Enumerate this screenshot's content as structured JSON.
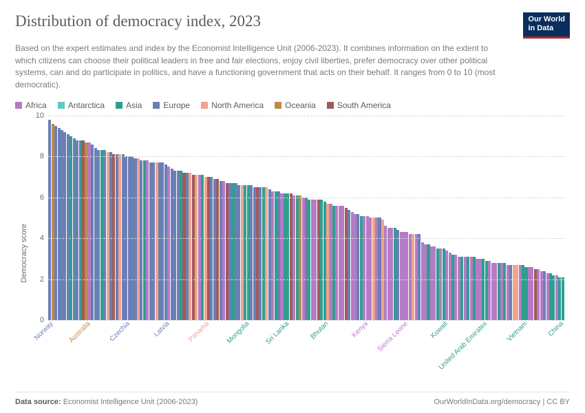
{
  "header": {
    "title": "Distribution of democracy index, 2023",
    "subtitle": "Based on the expert estimates and index by the Economist Intelligence Unit (2006-2023). It combines information on the extent to which citizens can choose their political leaders in free and fair elections, enjoy civil liberties, prefer democracy over other political systems, can and do participate in politics, and have a functioning government that acts on their behalf. It ranges from 0 to 10 (most democratic).",
    "logo_line1": "Our World",
    "logo_line2": "in Data"
  },
  "legend": [
    {
      "label": "Africa",
      "color": "#b57bc4"
    },
    {
      "label": "Antarctica",
      "color": "#5ec8c3"
    },
    {
      "label": "Asia",
      "color": "#2f9e8f"
    },
    {
      "label": "Europe",
      "color": "#6a7fb5"
    },
    {
      "label": "North America",
      "color": "#f0a48c"
    },
    {
      "label": "Oceania",
      "color": "#c08a4a"
    },
    {
      "label": "South America",
      "color": "#a05a5a"
    }
  ],
  "chart": {
    "type": "bar",
    "ylabel": "Democracy score",
    "ylim": [
      0,
      10
    ],
    "ytick_step": 2,
    "grid_color": "#d7d7d7",
    "background_color": "#ffffff",
    "tick_fontsize": 11,
    "label_fontsize": 11,
    "xlabel_fontsize": 10,
    "bars": [
      {
        "v": 9.8,
        "c": "#6a7fb5",
        "label": "Norway"
      },
      {
        "v": 9.6,
        "c": "#c08a4a"
      },
      {
        "v": 9.5,
        "c": "#6a7fb5"
      },
      {
        "v": 9.4,
        "c": "#6a7fb5"
      },
      {
        "v": 9.3,
        "c": "#6a7fb5"
      },
      {
        "v": 9.2,
        "c": "#6a7fb5"
      },
      {
        "v": 9.1,
        "c": "#6a7fb5"
      },
      {
        "v": 9.0,
        "c": "#2f9e8f"
      },
      {
        "v": 8.9,
        "c": "#6a7fb5"
      },
      {
        "v": 8.8,
        "c": "#6a7fb5"
      },
      {
        "v": 8.8,
        "c": "#2f9e8f"
      },
      {
        "v": 8.8,
        "c": "#a05a5a"
      },
      {
        "v": 8.7,
        "c": "#c08a4a",
        "label": "Australia"
      },
      {
        "v": 8.7,
        "c": "#b57bc4"
      },
      {
        "v": 8.6,
        "c": "#6a7fb5"
      },
      {
        "v": 8.4,
        "c": "#6a7fb5"
      },
      {
        "v": 8.3,
        "c": "#6a7fb5"
      },
      {
        "v": 8.3,
        "c": "#2f9e8f"
      },
      {
        "v": 8.3,
        "c": "#6a7fb5"
      },
      {
        "v": 8.2,
        "c": "#f0a48c"
      },
      {
        "v": 8.2,
        "c": "#6a7fb5"
      },
      {
        "v": 8.1,
        "c": "#a05a5a"
      },
      {
        "v": 8.1,
        "c": "#6a7fb5"
      },
      {
        "v": 8.1,
        "c": "#f0a48c"
      },
      {
        "v": 8.1,
        "c": "#6a7fb5"
      },
      {
        "v": 8.0,
        "c": "#6a7fb5",
        "label": "Czechia"
      },
      {
        "v": 8.0,
        "c": "#6a7fb5"
      },
      {
        "v": 8.0,
        "c": "#6a7fb5"
      },
      {
        "v": 7.9,
        "c": "#6a7fb5"
      },
      {
        "v": 7.9,
        "c": "#f0a48c"
      },
      {
        "v": 7.8,
        "c": "#6a7fb5"
      },
      {
        "v": 7.8,
        "c": "#2f9e8f"
      },
      {
        "v": 7.8,
        "c": "#b57bc4"
      },
      {
        "v": 7.7,
        "c": "#6a7fb5"
      },
      {
        "v": 7.7,
        "c": "#6a7fb5"
      },
      {
        "v": 7.7,
        "c": "#f0a48c"
      },
      {
        "v": 7.7,
        "c": "#6a7fb5"
      },
      {
        "v": 7.7,
        "c": "#6a7fb5"
      },
      {
        "v": 7.6,
        "c": "#6a7fb5",
        "label": "Latvia"
      },
      {
        "v": 7.5,
        "c": "#b57bc4"
      },
      {
        "v": 7.4,
        "c": "#6a7fb5"
      },
      {
        "v": 7.3,
        "c": "#6a7fb5"
      },
      {
        "v": 7.3,
        "c": "#6a7fb5"
      },
      {
        "v": 7.3,
        "c": "#2f9e8f"
      },
      {
        "v": 7.2,
        "c": "#a05a5a"
      },
      {
        "v": 7.2,
        "c": "#6a7fb5"
      },
      {
        "v": 7.2,
        "c": "#f0a48c"
      },
      {
        "v": 7.1,
        "c": "#a05a5a"
      },
      {
        "v": 7.1,
        "c": "#f0a48c"
      },
      {
        "v": 7.1,
        "c": "#b57bc4"
      },
      {
        "v": 7.1,
        "c": "#2f9e8f"
      },
      {
        "v": 7.0,
        "c": "#f0a48c",
        "label": "Panama"
      },
      {
        "v": 7.0,
        "c": "#a05a5a"
      },
      {
        "v": 7.0,
        "c": "#6a7fb5"
      },
      {
        "v": 6.9,
        "c": "#6a7fb5"
      },
      {
        "v": 6.9,
        "c": "#a05a5a"
      },
      {
        "v": 6.8,
        "c": "#6a7fb5"
      },
      {
        "v": 6.8,
        "c": "#b57bc4"
      },
      {
        "v": 6.7,
        "c": "#a05a5a"
      },
      {
        "v": 6.7,
        "c": "#6a7fb5"
      },
      {
        "v": 6.7,
        "c": "#2f9e8f"
      },
      {
        "v": 6.7,
        "c": "#6a7fb5"
      },
      {
        "v": 6.6,
        "c": "#6a7fb5"
      },
      {
        "v": 6.6,
        "c": "#f0a48c"
      },
      {
        "v": 6.6,
        "c": "#2f9e8f",
        "label": "Mongolia"
      },
      {
        "v": 6.6,
        "c": "#2f9e8f"
      },
      {
        "v": 6.6,
        "c": "#6a7fb5"
      },
      {
        "v": 6.5,
        "c": "#6a7fb5"
      },
      {
        "v": 6.5,
        "c": "#a05a5a"
      },
      {
        "v": 6.5,
        "c": "#6a7fb5"
      },
      {
        "v": 6.5,
        "c": "#2f9e8f"
      },
      {
        "v": 6.5,
        "c": "#f0a48c"
      },
      {
        "v": 6.4,
        "c": "#6a7fb5"
      },
      {
        "v": 6.3,
        "c": "#b57bc4"
      },
      {
        "v": 6.3,
        "c": "#2f9e8f"
      },
      {
        "v": 6.3,
        "c": "#6a7fb5"
      },
      {
        "v": 6.2,
        "c": "#b57bc4"
      },
      {
        "v": 6.2,
        "c": "#2f9e8f",
        "label": "Sri Lanka"
      },
      {
        "v": 6.2,
        "c": "#2f9e8f"
      },
      {
        "v": 6.2,
        "c": "#a05a5a"
      },
      {
        "v": 6.1,
        "c": "#b57bc4"
      },
      {
        "v": 6.1,
        "c": "#2f9e8f"
      },
      {
        "v": 6.1,
        "c": "#c08a4a"
      },
      {
        "v": 6.0,
        "c": "#b57bc4"
      },
      {
        "v": 6.0,
        "c": "#6a7fb5"
      },
      {
        "v": 5.9,
        "c": "#2f9e8f"
      },
      {
        "v": 5.9,
        "c": "#b57bc4"
      },
      {
        "v": 5.9,
        "c": "#b57bc4"
      },
      {
        "v": 5.9,
        "c": "#a05a5a"
      },
      {
        "v": 5.9,
        "c": "#2f9e8f"
      },
      {
        "v": 5.8,
        "c": "#2f9e8f",
        "label": "Bhutan"
      },
      {
        "v": 5.7,
        "c": "#f0a48c"
      },
      {
        "v": 5.7,
        "c": "#b57bc4"
      },
      {
        "v": 5.6,
        "c": "#2f9e8f"
      },
      {
        "v": 5.6,
        "c": "#b57bc4"
      },
      {
        "v": 5.6,
        "c": "#b57bc4"
      },
      {
        "v": 5.6,
        "c": "#b57bc4"
      },
      {
        "v": 5.5,
        "c": "#a05a5a"
      },
      {
        "v": 5.4,
        "c": "#6a7fb5"
      },
      {
        "v": 5.3,
        "c": "#b57bc4"
      },
      {
        "v": 5.2,
        "c": "#b57bc4"
      },
      {
        "v": 5.2,
        "c": "#6a7fb5"
      },
      {
        "v": 5.1,
        "c": "#2f9e8f"
      },
      {
        "v": 5.1,
        "c": "#b57bc4",
        "label": "Kenya"
      },
      {
        "v": 5.1,
        "c": "#b57bc4"
      },
      {
        "v": 5.0,
        "c": "#b57bc4"
      },
      {
        "v": 5.0,
        "c": "#f0a48c"
      },
      {
        "v": 5.0,
        "c": "#b57bc4"
      },
      {
        "v": 5.0,
        "c": "#6a7fb5"
      },
      {
        "v": 4.9,
        "c": "#f0a48c"
      },
      {
        "v": 4.6,
        "c": "#b57bc4"
      },
      {
        "v": 4.5,
        "c": "#b57bc4"
      },
      {
        "v": 4.5,
        "c": "#b57bc4"
      },
      {
        "v": 4.5,
        "c": "#2f9e8f"
      },
      {
        "v": 4.4,
        "c": "#6a7fb5"
      },
      {
        "v": 4.3,
        "c": "#b57bc4"
      },
      {
        "v": 4.3,
        "c": "#b57bc4",
        "label": "Sierra Leone"
      },
      {
        "v": 4.3,
        "c": "#b57bc4"
      },
      {
        "v": 4.2,
        "c": "#b57bc4"
      },
      {
        "v": 4.2,
        "c": "#f0a48c"
      },
      {
        "v": 4.2,
        "c": "#b57bc4"
      },
      {
        "v": 4.2,
        "c": "#6a7fb5"
      },
      {
        "v": 3.8,
        "c": "#b57bc4"
      },
      {
        "v": 3.7,
        "c": "#b57bc4"
      },
      {
        "v": 3.7,
        "c": "#2f9e8f"
      },
      {
        "v": 3.6,
        "c": "#b57bc4"
      },
      {
        "v": 3.6,
        "c": "#b57bc4"
      },
      {
        "v": 3.5,
        "c": "#2f9e8f"
      },
      {
        "v": 3.5,
        "c": "#b57bc4"
      },
      {
        "v": 3.5,
        "c": "#2f9e8f",
        "label": "Kuwait"
      },
      {
        "v": 3.4,
        "c": "#b57bc4"
      },
      {
        "v": 3.3,
        "c": "#b57bc4"
      },
      {
        "v": 3.2,
        "c": "#2f9e8f"
      },
      {
        "v": 3.2,
        "c": "#b57bc4"
      },
      {
        "v": 3.1,
        "c": "#b57bc4"
      },
      {
        "v": 3.1,
        "c": "#2f9e8f"
      },
      {
        "v": 3.1,
        "c": "#b57bc4"
      },
      {
        "v": 3.1,
        "c": "#2f9e8f"
      },
      {
        "v": 3.1,
        "c": "#b57bc4"
      },
      {
        "v": 3.1,
        "c": "#2f9e8f"
      },
      {
        "v": 3.0,
        "c": "#b57bc4"
      },
      {
        "v": 3.0,
        "c": "#b57bc4"
      },
      {
        "v": 3.0,
        "c": "#2f9e8f",
        "label": "United Arab Emirates"
      },
      {
        "v": 2.9,
        "c": "#2f9e8f"
      },
      {
        "v": 2.9,
        "c": "#b57bc4"
      },
      {
        "v": 2.8,
        "c": "#b57bc4"
      },
      {
        "v": 2.8,
        "c": "#b57bc4"
      },
      {
        "v": 2.8,
        "c": "#2f9e8f"
      },
      {
        "v": 2.8,
        "c": "#b57bc4"
      },
      {
        "v": 2.8,
        "c": "#2f9e8f"
      },
      {
        "v": 2.7,
        "c": "#b57bc4"
      },
      {
        "v": 2.7,
        "c": "#6a7fb5"
      },
      {
        "v": 2.7,
        "c": "#f0a48c"
      },
      {
        "v": 2.7,
        "c": "#f0a48c"
      },
      {
        "v": 2.7,
        "c": "#b57bc4"
      },
      {
        "v": 2.7,
        "c": "#2f9e8f",
        "label": "Vietnam"
      },
      {
        "v": 2.6,
        "c": "#2f9e8f"
      },
      {
        "v": 2.6,
        "c": "#b57bc4"
      },
      {
        "v": 2.6,
        "c": "#b57bc4"
      },
      {
        "v": 2.5,
        "c": "#a05a5a"
      },
      {
        "v": 2.5,
        "c": "#b57bc4"
      },
      {
        "v": 2.4,
        "c": "#b57bc4"
      },
      {
        "v": 2.4,
        "c": "#6a7fb5"
      },
      {
        "v": 2.3,
        "c": "#b57bc4"
      },
      {
        "v": 2.3,
        "c": "#2f9e8f"
      },
      {
        "v": 2.2,
        "c": "#2f9e8f"
      },
      {
        "v": 2.2,
        "c": "#b57bc4"
      },
      {
        "v": 2.1,
        "c": "#2f9e8f",
        "label": "China"
      },
      {
        "v": 2.1,
        "c": "#2f9e8f"
      }
    ]
  },
  "footer": {
    "source_label": "Data source:",
    "source_value": "Economist Intelligence Unit (2006-2023)",
    "attribution": "OurWorldInData.org/democracy | CC BY"
  }
}
